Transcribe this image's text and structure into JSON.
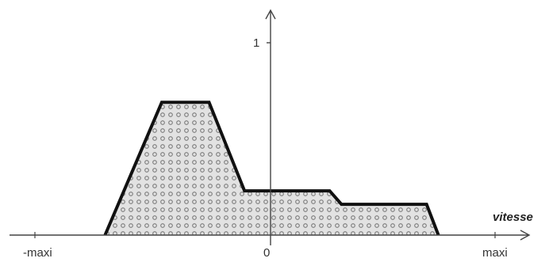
{
  "chart_data": {
    "type": "area",
    "title": "",
    "xlabel": "vitesse",
    "ylabel": "",
    "x_tick_labels": [
      "-maxi",
      "0",
      "maxi"
    ],
    "y_tick_labels": [
      "1"
    ],
    "xlim": [
      -1,
      1
    ],
    "ylim": [
      0,
      1
    ],
    "grid": false,
    "fill_pattern": "dotted",
    "series": [
      {
        "x": [
          -0.7,
          -0.46,
          -0.26,
          -0.11,
          0.25,
          0.3,
          0.66,
          0.71
        ],
        "y": [
          0,
          0.69,
          0.69,
          0.23,
          0.23,
          0.16,
          0.16,
          0
        ]
      }
    ],
    "colors": {
      "outline": "#111111",
      "axis": "#444444",
      "fill_bg": "#e2e2e2",
      "fill_dot": "#7a7a7a"
    }
  }
}
